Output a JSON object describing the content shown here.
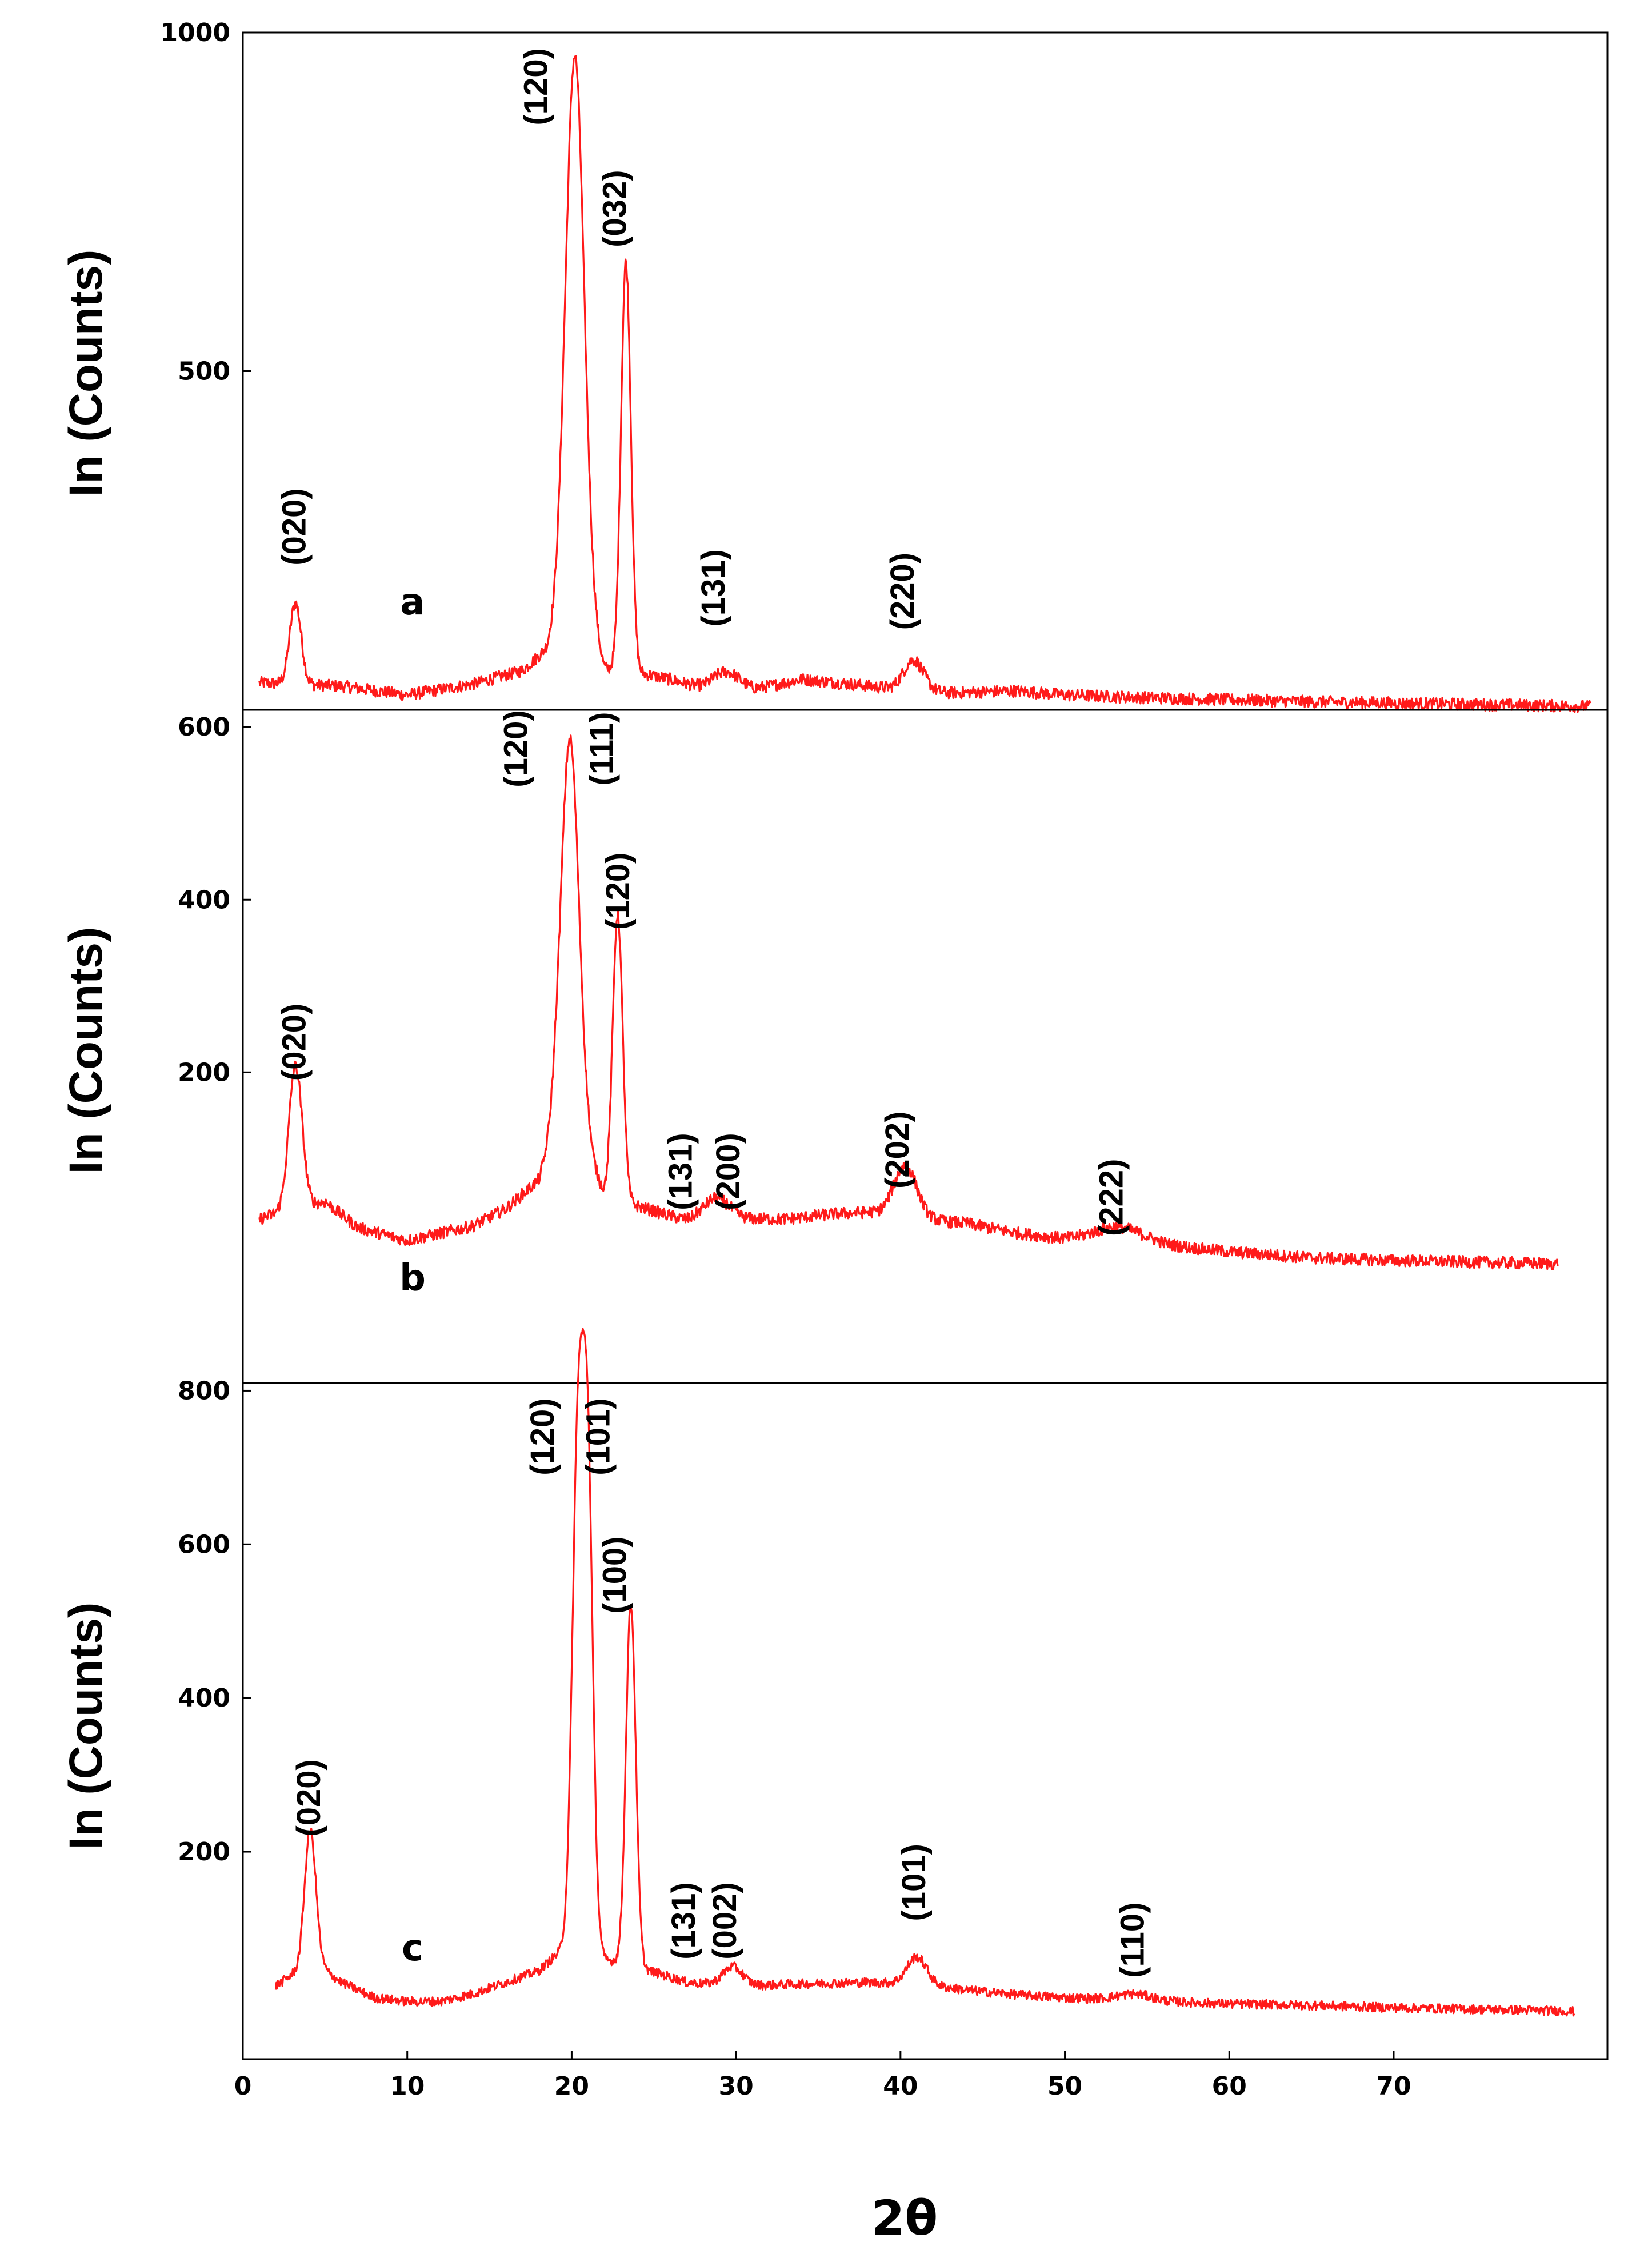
{
  "chart_data": [
    {
      "type": "line",
      "panel": "a",
      "sample_label": "a",
      "ylabel": "In (Counts)",
      "xlim": [
        0,
        83
      ],
      "ylim": [
        0,
        1000
      ],
      "yticks": [
        1000,
        500
      ],
      "series": [
        {
          "name": "a",
          "color": "#ff1a1a",
          "baseline": [
            [
              1,
              40
            ],
            [
              3,
              38
            ],
            [
              6,
              35
            ],
            [
              10,
              22
            ],
            [
              14,
              38
            ],
            [
              17,
              58
            ],
            [
              18.5,
              90
            ],
            [
              19.5,
              160
            ],
            [
              21,
              130
            ],
            [
              22,
              60
            ],
            [
              24,
              55
            ],
            [
              26,
              45
            ],
            [
              28,
              32
            ],
            [
              31,
              30
            ],
            [
              34,
              45
            ],
            [
              37,
              38
            ],
            [
              40,
              30
            ],
            [
              43,
              25
            ],
            [
              47,
              28
            ],
            [
              50,
              22
            ],
            [
              55,
              18
            ],
            [
              60,
              15
            ],
            [
              65,
              12
            ],
            [
              70,
              10
            ],
            [
              75,
              8
            ],
            [
              80,
              6
            ],
            [
              82,
              5
            ]
          ],
          "peaks": [
            [
              3.2,
              120,
              0.35
            ],
            [
              20.2,
              820,
              0.55
            ],
            [
              23.3,
              605,
              0.3
            ],
            [
              29.4,
              25,
              0.8
            ],
            [
              40.8,
              45,
              0.6
            ]
          ],
          "noise": 9
        }
      ],
      "peak_labels": [
        {
          "text": "(020)",
          "x": 3.8,
          "y": 270
        },
        {
          "text": "(120)",
          "x": 18.5,
          "y": 920
        },
        {
          "text": "(032)",
          "x": 23.3,
          "y": 740
        },
        {
          "text": "(131)",
          "x": 29.3,
          "y": 180
        },
        {
          "text": "(220)",
          "x": 40.8,
          "y": 175
        }
      ]
    },
    {
      "type": "line",
      "panel": "b",
      "sample_label": "b",
      "ylabel": "In (Counts)",
      "xlim": [
        0,
        83
      ],
      "ylim": [
        -160,
        620
      ],
      "yticks": [
        600,
        400,
        200
      ],
      "series": [
        {
          "name": "b",
          "color": "#ff1a1a",
          "baseline": [
            [
              1,
              30
            ],
            [
              2.5,
              40
            ],
            [
              5,
              50
            ],
            [
              7,
              20
            ],
            [
              10,
              5
            ],
            [
              14,
              22
            ],
            [
              16,
              42
            ],
            [
              18,
              75
            ],
            [
              19,
              130
            ],
            [
              21,
              100
            ],
            [
              22,
              60
            ],
            [
              24,
              45
            ],
            [
              27,
              28
            ],
            [
              30,
              30
            ],
            [
              33,
              30
            ],
            [
              36,
              36
            ],
            [
              38,
              38
            ],
            [
              41,
              30
            ],
            [
              44,
              25
            ],
            [
              47,
              14
            ],
            [
              50,
              7
            ],
            [
              53,
              12
            ],
            [
              56,
              0
            ],
            [
              60,
              -8
            ],
            [
              65,
              -15
            ],
            [
              70,
              -18
            ],
            [
              75,
              -20
            ],
            [
              80,
              -22
            ]
          ],
          "peaks": [
            [
              3.2,
              165,
              0.4
            ],
            [
              19.9,
              470,
              0.55
            ],
            [
              22.8,
              330,
              0.3
            ],
            [
              28.8,
              25,
              0.8
            ],
            [
              40.3,
              60,
              0.7
            ],
            [
              53.5,
              10,
              1.5
            ]
          ],
          "noise": 7
        }
      ],
      "peak_labels": [
        {
          "text": "(020)",
          "x": 3.8,
          "y": 235
        },
        {
          "text": "(120)",
          "x": 17.3,
          "y": 575
        },
        {
          "text": "(111)",
          "x": 22.5,
          "y": 575
        },
        {
          "text": "(120)",
          "x": 23.5,
          "y": 410
        },
        {
          "text": "(131)",
          "x": 27.3,
          "y": 85
        },
        {
          "text": "(200)",
          "x": 30.2,
          "y": 85
        },
        {
          "text": "(202)",
          "x": 40.5,
          "y": 110
        },
        {
          "text": "(222)",
          "x": 53.5,
          "y": 55
        }
      ]
    },
    {
      "type": "line",
      "panel": "c",
      "sample_label": "c",
      "ylabel": "In (Counts)",
      "xlim": [
        0,
        83
      ],
      "ylim": [
        -70,
        810
      ],
      "yticks": [
        800,
        600,
        400,
        200
      ],
      "series": [
        {
          "name": "c",
          "color": "#ff1a1a",
          "baseline": [
            [
              2,
              25
            ],
            [
              3,
              40
            ],
            [
              5,
              45
            ],
            [
              6,
              30
            ],
            [
              8,
              10
            ],
            [
              10,
              5
            ],
            [
              12,
              5
            ],
            [
              14,
              15
            ],
            [
              16,
              30
            ],
            [
              18,
              45
            ],
            [
              19.3,
              70
            ],
            [
              21,
              120
            ],
            [
              22,
              60
            ],
            [
              24,
              50
            ],
            [
              27,
              30
            ],
            [
              30,
              25
            ],
            [
              34,
              28
            ],
            [
              38,
              30
            ],
            [
              41,
              28
            ],
            [
              44,
              20
            ],
            [
              47,
              14
            ],
            [
              50,
              10
            ],
            [
              53,
              8
            ],
            [
              56,
              5
            ],
            [
              60,
              2
            ],
            [
              65,
              0
            ],
            [
              70,
              -3
            ],
            [
              75,
              -5
            ],
            [
              80,
              -7
            ],
            [
              81,
              -8
            ]
          ],
          "peaks": [
            [
              4.1,
              185,
              0.35
            ],
            [
              20.4,
              650,
              0.35
            ],
            [
              21.0,
              520,
              0.3
            ],
            [
              23.6,
              470,
              0.3
            ],
            [
              29.8,
              25,
              0.6
            ],
            [
              41.0,
              35,
              0.6
            ],
            [
              54.3,
              8,
              1.0
            ]
          ],
          "noise": 6
        }
      ],
      "peak_labels": [
        {
          "text": "(020)",
          "x": 4.7,
          "y": 270
        },
        {
          "text": "(120)",
          "x": 18.9,
          "y": 740
        },
        {
          "text": "(101)",
          "x": 22.3,
          "y": 740
        },
        {
          "text": "(100)",
          "x": 23.3,
          "y": 560
        },
        {
          "text": "(131)",
          "x": 27.5,
          "y": 110
        },
        {
          "text": "(002)",
          "x": 30.0,
          "y": 110
        },
        {
          "text": "(101)",
          "x": 41.5,
          "y": 160
        },
        {
          "text": "(110)",
          "x": 54.8,
          "y": 85
        }
      ]
    }
  ],
  "x_axis": {
    "label": "2θ",
    "ticks": [
      0,
      10,
      20,
      30,
      40,
      50,
      60,
      70
    ]
  }
}
